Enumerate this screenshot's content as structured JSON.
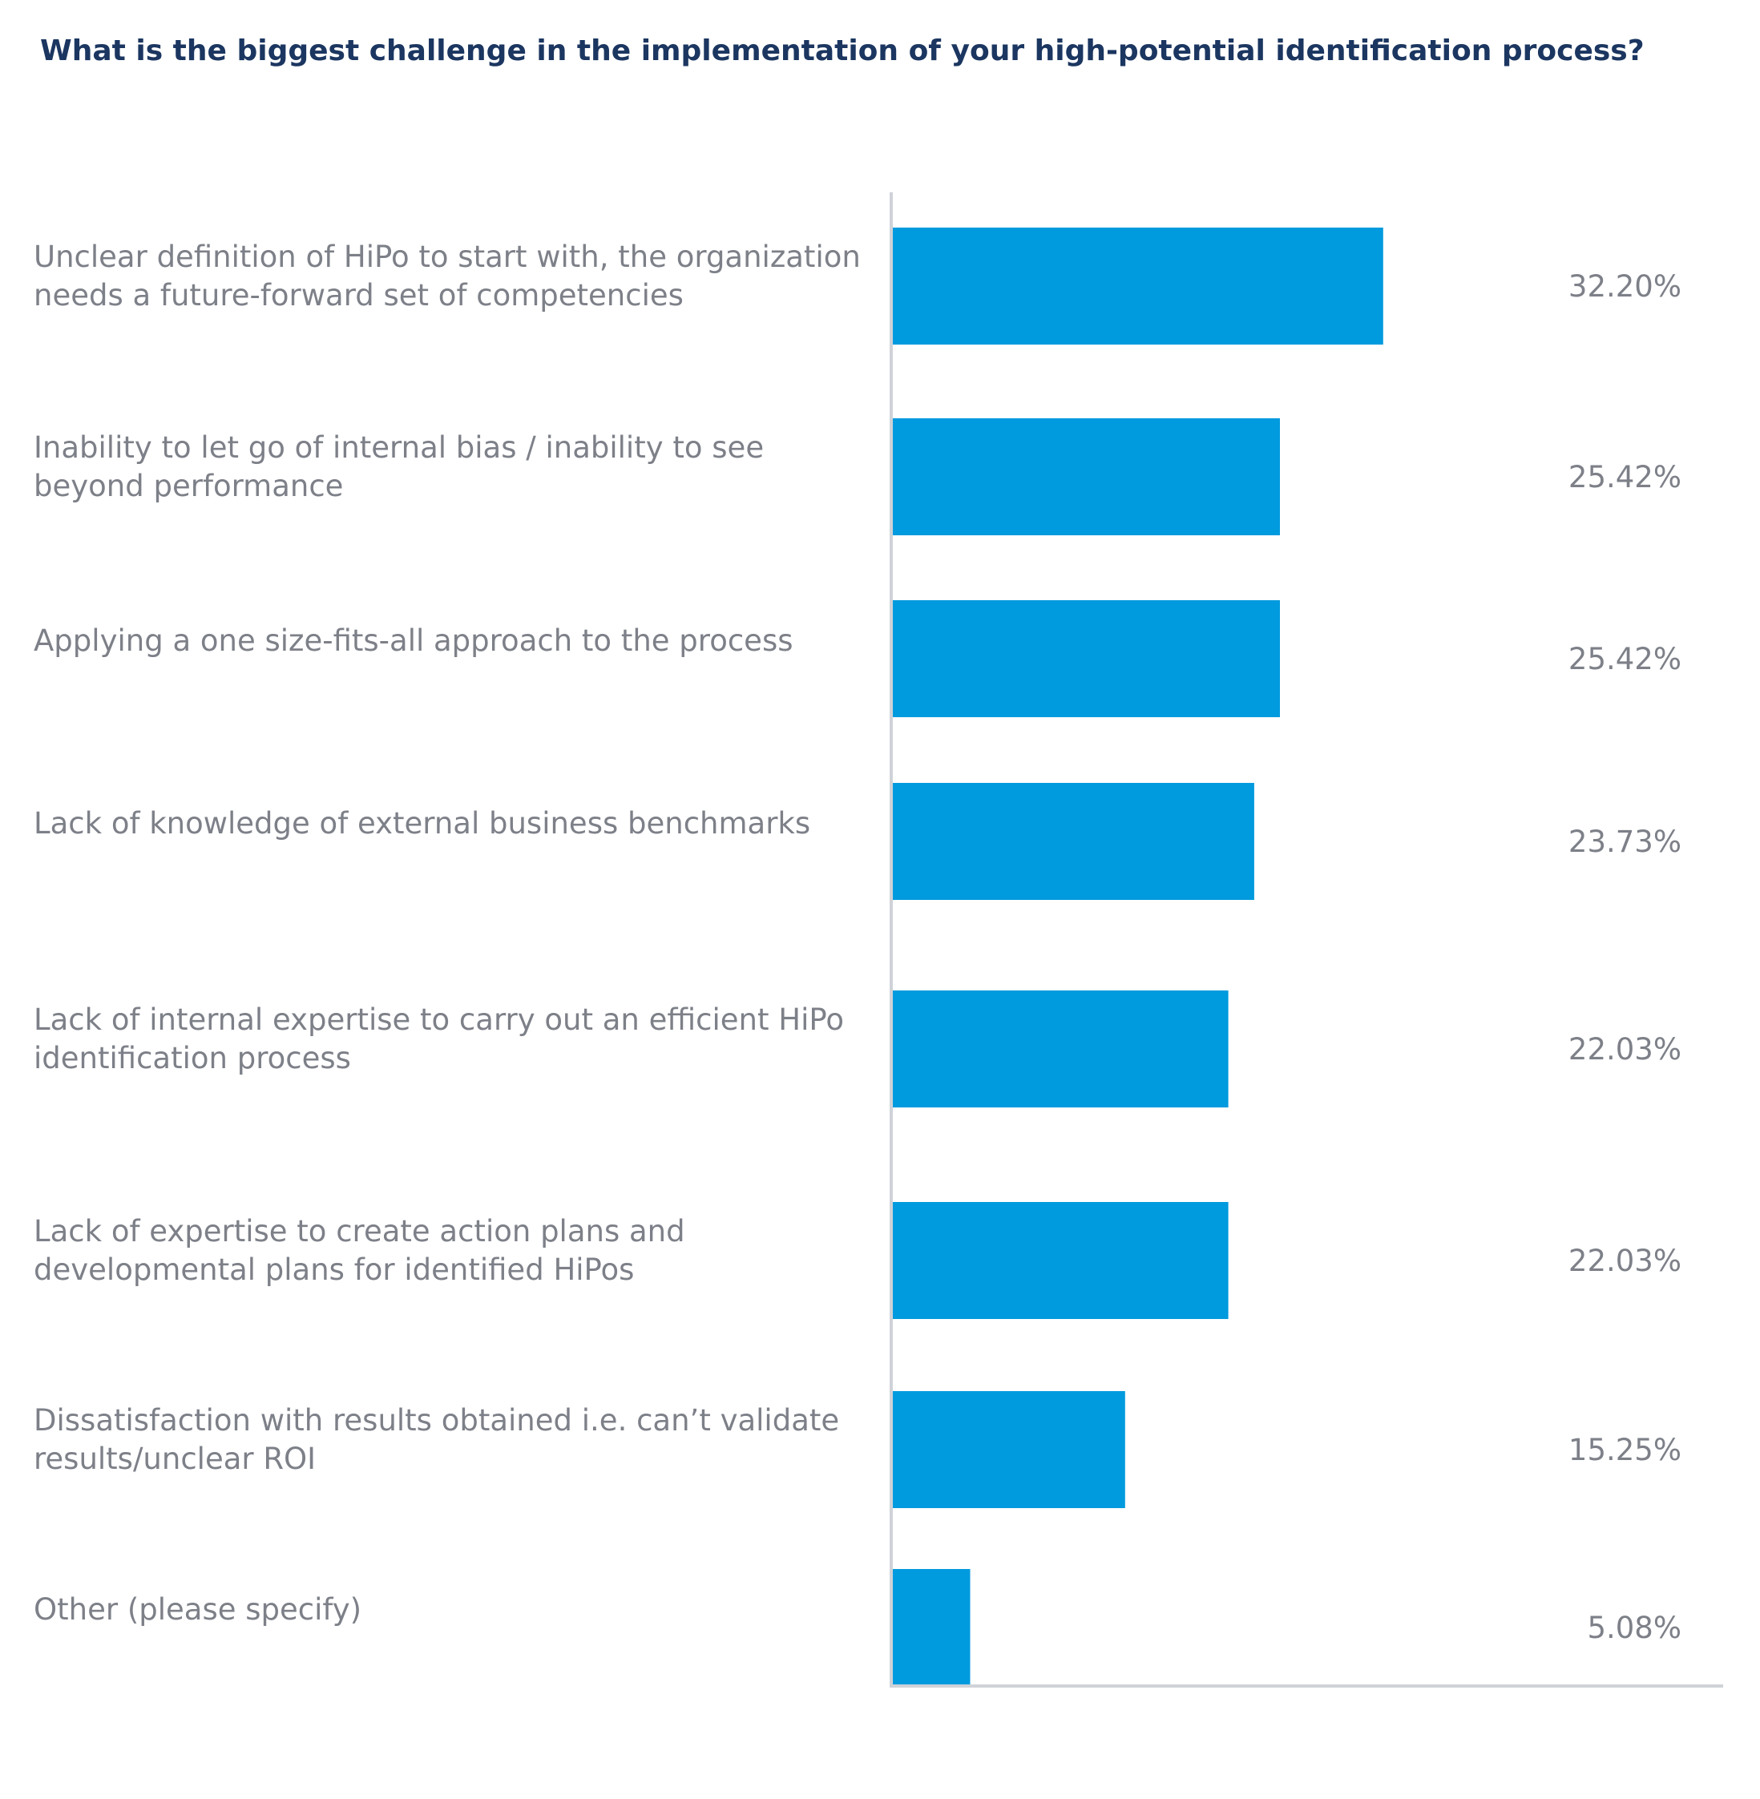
{
  "chart_data": {
    "type": "bar",
    "orientation": "horizontal",
    "title": "What is the biggest challenge in the implementation of your high-potential identification process?",
    "categories": [
      [
        "Unclear definition of HiPo to start with, the organization",
        "needs a future-forward  set of competencies"
      ],
      [
        "Inability to let go of internal bias / inability to see",
        "beyond performance"
      ],
      [
        "Applying a one size-fits-all approach to the process"
      ],
      [
        "Lack of knowledge of external business benchmarks"
      ],
      [
        "Lack of internal expertise to carry out an efficient HiPo",
        "identification process"
      ],
      [
        "Lack of expertise to create action plans and",
        "developmental plans for identified  HiPos"
      ],
      [
        "Dissatisfaction with results obtained i.e. can’t validate",
        "results/unclear ROI"
      ],
      [
        "Other (please specify)"
      ]
    ],
    "values": [
      32.2,
      25.42,
      25.42,
      23.73,
      22.03,
      22.03,
      15.25,
      5.08
    ],
    "value_labels": [
      "32.20%",
      "25.42%",
      "25.42%",
      "23.73%",
      "22.03%",
      "22.03%",
      "15.25%",
      "5.08%"
    ],
    "xlim": [
      0,
      54
    ],
    "grid": false,
    "legend": "none",
    "bar_color": "#009ade",
    "axis_color": "#cfd3d8",
    "label_color": "#7d8088",
    "title_color": "#1b3660"
  }
}
